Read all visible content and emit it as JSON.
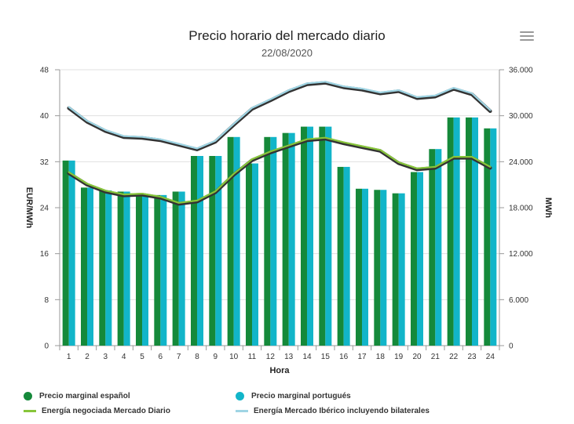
{
  "header": {
    "title": "Precio horario del mercado diario",
    "subtitle": "22/08/2020"
  },
  "colors": {
    "es_bar": "#15893a",
    "pt_bar": "#12b5c9",
    "energy_md": "#87c53a",
    "energy_iberico": "#9fd5e4",
    "line_shadow": "#333333"
  },
  "chart_data": {
    "type": "bar",
    "x": [
      1,
      2,
      3,
      4,
      5,
      6,
      7,
      8,
      9,
      10,
      11,
      12,
      13,
      14,
      15,
      16,
      17,
      18,
      19,
      20,
      21,
      22,
      23,
      24
    ],
    "xlabel": "Hora",
    "ylabel": "EUR/MWh",
    "y2label": "MWh",
    "ylim": [
      0,
      48
    ],
    "y2lim": [
      0,
      36000
    ],
    "yticks": [
      "0",
      "8",
      "16",
      "24",
      "32",
      "40",
      "48"
    ],
    "y2ticks": [
      "0",
      "6.000",
      "12.000",
      "18.000",
      "24.000",
      "30.000",
      "36.000"
    ],
    "series": [
      {
        "name": "Precio marginal español",
        "kind": "bar",
        "axis": "left",
        "values": [
          32.2,
          27.5,
          27.0,
          26.8,
          26.3,
          26.2,
          26.8,
          33.0,
          33.0,
          36.3,
          31.7,
          36.3,
          37.0,
          38.1,
          38.1,
          31.1,
          27.3,
          27.1,
          26.5,
          30.2,
          34.2,
          39.7,
          39.7,
          37.8
        ]
      },
      {
        "name": "Precio marginal portugués",
        "kind": "bar",
        "axis": "left",
        "values": [
          32.2,
          27.5,
          27.0,
          26.8,
          26.3,
          26.2,
          26.8,
          33.0,
          33.0,
          36.3,
          31.7,
          36.3,
          37.0,
          38.1,
          38.1,
          31.1,
          27.3,
          27.1,
          26.5,
          30.2,
          34.2,
          39.7,
          39.7,
          37.8
        ]
      },
      {
        "name": "Energía negociada Mercado Diario",
        "kind": "line",
        "axis": "right",
        "values": [
          22500,
          21000,
          20100,
          19600,
          19700,
          19300,
          18500,
          18800,
          20000,
          22300,
          24200,
          25200,
          26000,
          26800,
          27000,
          26400,
          25900,
          25400,
          23800,
          23000,
          23200,
          24500,
          24500,
          23200
        ]
      },
      {
        "name": "Energía Mercado Ibérico incluyendo bilaterales",
        "kind": "line",
        "axis": "right",
        "values": [
          31000,
          29200,
          28000,
          27200,
          27100,
          26800,
          26200,
          25600,
          26600,
          28800,
          30900,
          32000,
          33200,
          34100,
          34300,
          33700,
          33400,
          32900,
          33200,
          32300,
          32500,
          33500,
          32800,
          30600
        ]
      }
    ],
    "legend_position": "bottom",
    "grid": true
  }
}
